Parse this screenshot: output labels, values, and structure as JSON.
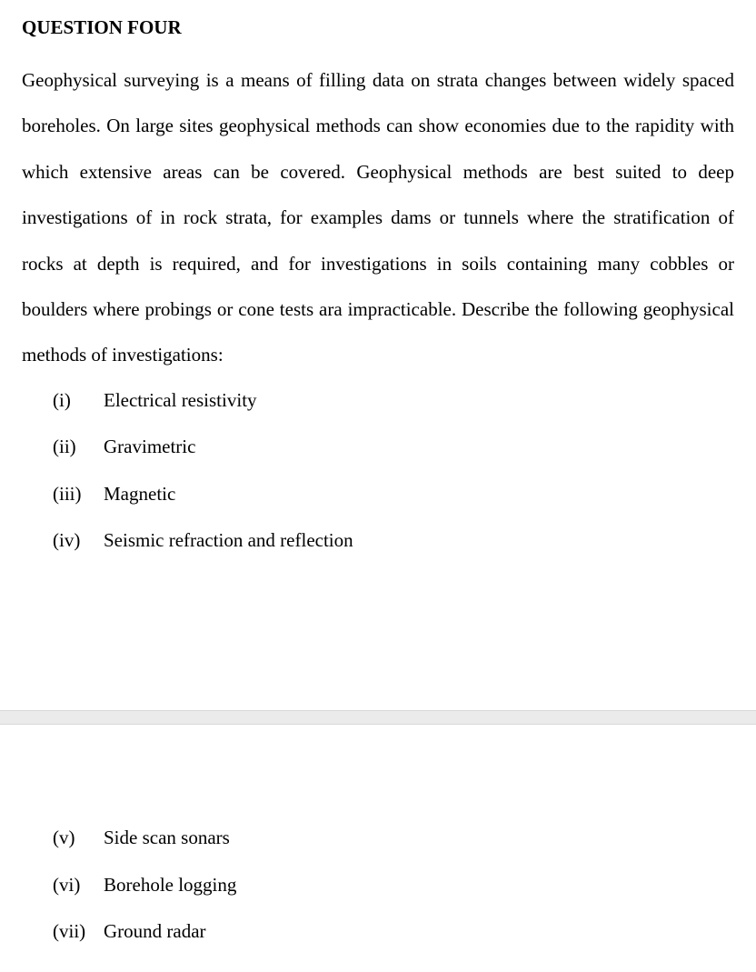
{
  "heading": "QUESTION FOUR",
  "paragraph": "Geophysical surveying is a means of filling data on strata changes between widely spaced boreholes. On large sites geophysical methods can show economies due to the rapidity with which extensive areas can be covered.  Geophysical methods are best suited to deep investigations of in rock strata, for examples dams or tunnels where the stratification of rocks at depth is required, and for investigations in soils containing many cobbles or boulders where probings or cone tests ara impracticable. Describe the following geophysical methods of investigations:",
  "items_top": [
    {
      "marker": "(i)",
      "label": "Electrical resistivity"
    },
    {
      "marker": "(ii)",
      "label": "Gravimetric"
    },
    {
      "marker": "(iii)",
      "label": "Magnetic"
    },
    {
      "marker": "(iv)",
      "label": "Seismic refraction and reflection"
    }
  ],
  "items_bottom": [
    {
      "marker": "(v)",
      "label": "Side scan sonars"
    },
    {
      "marker": "(vi)",
      "label": "Borehole logging"
    },
    {
      "marker": "(vii)",
      "label": "Ground radar"
    }
  ],
  "colors": {
    "text": "#000000",
    "background": "#ffffff",
    "break_bg": "#ebebeb",
    "break_border": "#d8d8d8"
  },
  "typography": {
    "font_family": "Times New Roman",
    "heading_size_pt": 16,
    "body_size_pt": 16,
    "line_height_body": 2.4
  }
}
